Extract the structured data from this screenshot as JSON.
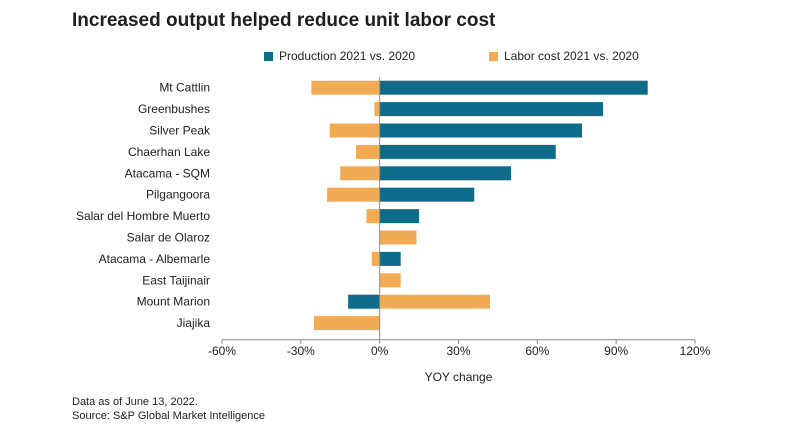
{
  "title": "Increased output helped reduce unit labor cost",
  "footnote": "Data as of June 13, 2022.",
  "source": "Source: S&P Global Market Intelligence",
  "colors": {
    "production": "#0e6b8a",
    "labor": "#f2ab55",
    "axis": "#8a8a8a",
    "grid": "#e0e0e0"
  },
  "chart_data": {
    "type": "bar",
    "orientation": "horizontal",
    "title": "Increased output helped reduce unit labor cost",
    "xlabel": "YOY change",
    "ylabel": "",
    "xlim": [
      -60,
      120
    ],
    "xticks": [
      -60,
      -30,
      0,
      30,
      60,
      90,
      120
    ],
    "xtick_labels": [
      "-60%",
      "-30%",
      "0%",
      "30%",
      "60%",
      "90%",
      "120%"
    ],
    "legend_position": "top",
    "categories": [
      "Mt Cattlin",
      "Greenbushes",
      "Silver Peak",
      "Chaerhan Lake",
      "Atacama - SQM",
      "Pilgangoora",
      "Salar del Hombre Muerto",
      "Salar de Olaroz",
      "Atacama - Albemarle",
      "East Taijinair",
      "Mount Marion",
      "Jiajika"
    ],
    "series": [
      {
        "name": "Production 2021 vs. 2020",
        "key": "production",
        "values": [
          102,
          85,
          77,
          67,
          50,
          36,
          15,
          3,
          8,
          0,
          -12,
          0
        ]
      },
      {
        "name": "Labor cost 2021 vs. 2020",
        "key": "labor",
        "values": [
          -26,
          -2,
          -19,
          -9,
          -15,
          -20,
          -5,
          14,
          -3,
          8,
          42,
          -25
        ]
      }
    ]
  }
}
